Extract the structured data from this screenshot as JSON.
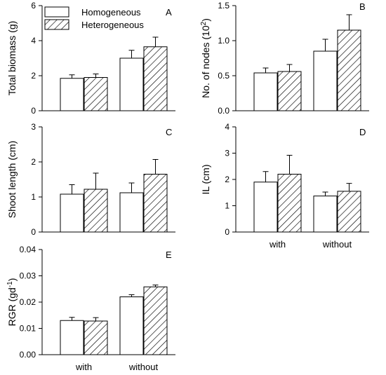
{
  "legend": {
    "entries": [
      {
        "label": "Homogeneous",
        "fill": "plain"
      },
      {
        "label": "Heterogeneous",
        "fill": "hatched"
      }
    ]
  },
  "colors": {
    "bar_fill": "#ffffff",
    "stroke": "#000000"
  },
  "chart_data": [
    {
      "panel": "A",
      "type": "bar",
      "categories": [
        "with",
        "without"
      ],
      "show_xticklabels": false,
      "ylabel": "Total biomass (g)",
      "ylim": [
        0,
        6
      ],
      "yticks": [
        "0",
        "2",
        "4",
        "6"
      ],
      "series": [
        {
          "name": "Homogeneous",
          "values": [
            1.85,
            3.0
          ],
          "errors": [
            0.2,
            0.45
          ]
        },
        {
          "name": "Heterogeneous",
          "values": [
            1.9,
            3.65
          ],
          "errors": [
            0.2,
            0.55
          ]
        }
      ]
    },
    {
      "panel": "B",
      "type": "bar",
      "categories": [
        "with",
        "without"
      ],
      "show_xticklabels": false,
      "ylabel": "No. of nodes (10",
      "ylabel_sup": "2",
      "ylabel_tail": ")",
      "ylim": [
        0,
        1.5
      ],
      "yticks": [
        "0.0",
        "0.5",
        "1.0",
        "1.5"
      ],
      "series": [
        {
          "name": "Homogeneous",
          "values": [
            0.54,
            0.85
          ],
          "errors": [
            0.07,
            0.17
          ]
        },
        {
          "name": "Heterogeneous",
          "values": [
            0.56,
            1.15
          ],
          "errors": [
            0.1,
            0.22
          ]
        }
      ]
    },
    {
      "panel": "C",
      "type": "bar",
      "categories": [
        "with",
        "without"
      ],
      "show_xticklabels": false,
      "ylabel": "Shoot length (cm)",
      "ylim": [
        0,
        3
      ],
      "yticks": [
        "0",
        "1",
        "2",
        "3"
      ],
      "series": [
        {
          "name": "Homogeneous",
          "values": [
            1.08,
            1.12
          ],
          "errors": [
            0.27,
            0.28
          ]
        },
        {
          "name": "Heterogeneous",
          "values": [
            1.22,
            1.65
          ],
          "errors": [
            0.46,
            0.42
          ]
        }
      ]
    },
    {
      "panel": "D",
      "type": "bar",
      "categories": [
        "with",
        "without"
      ],
      "show_xticklabels": true,
      "ylabel": "IL (cm)",
      "ylim": [
        0,
        4
      ],
      "yticks": [
        "0",
        "1",
        "2",
        "3",
        "4"
      ],
      "series": [
        {
          "name": "Homogeneous",
          "values": [
            1.9,
            1.37
          ],
          "errors": [
            0.4,
            0.15
          ]
        },
        {
          "name": "Heterogeneous",
          "values": [
            2.2,
            1.55
          ],
          "errors": [
            0.72,
            0.3
          ]
        }
      ]
    },
    {
      "panel": "E",
      "type": "bar",
      "categories": [
        "with",
        "without"
      ],
      "show_xticklabels": true,
      "ylabel": "RGR (gd",
      "ylabel_sup": "-1",
      "ylabel_tail": ")",
      "ylim": [
        0,
        0.04
      ],
      "yticks": [
        "0.00",
        "0.01",
        "0.02",
        "0.03",
        "0.04"
      ],
      "series": [
        {
          "name": "Homogeneous",
          "values": [
            0.013,
            0.022
          ],
          "errors": [
            0.0012,
            0.0008
          ]
        },
        {
          "name": "Heterogeneous",
          "values": [
            0.0128,
            0.0258
          ],
          "errors": [
            0.0013,
            0.0007
          ]
        }
      ]
    }
  ]
}
